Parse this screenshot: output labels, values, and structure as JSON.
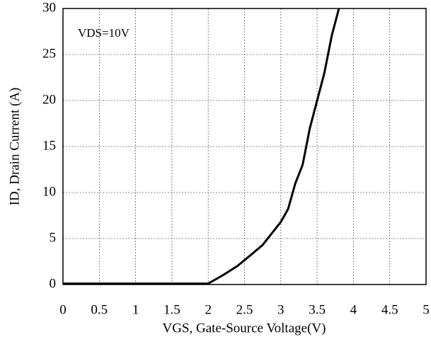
{
  "chart_data": {
    "type": "line",
    "x_label": "VGS, Gate-Source Voltage(V)",
    "y_label": "ID, Drain Current (A)",
    "annotation": "VDS=10V",
    "x": [
      0,
      1.95,
      2.0,
      2.2,
      2.4,
      2.6,
      2.75,
      2.85,
      3.0,
      3.1,
      3.2,
      3.3,
      3.4,
      3.5,
      3.6,
      3.7,
      3.8
    ],
    "series": [
      {
        "name": "ID",
        "color": "#000000",
        "values": [
          0.1,
          0.1,
          0.1,
          1.0,
          2.0,
          3.3,
          4.3,
          5.3,
          6.8,
          8.2,
          11,
          13,
          17,
          20,
          23,
          27,
          30
        ]
      }
    ],
    "xlim": [
      0,
      5
    ],
    "xticks": [
      0,
      0.5,
      1,
      1.5,
      2,
      2.5,
      3,
      3.5,
      4,
      4.5,
      5
    ],
    "ylim": [
      0,
      30
    ],
    "yticks": [
      0,
      5,
      10,
      15,
      20,
      25,
      30
    ],
    "grid": true
  }
}
